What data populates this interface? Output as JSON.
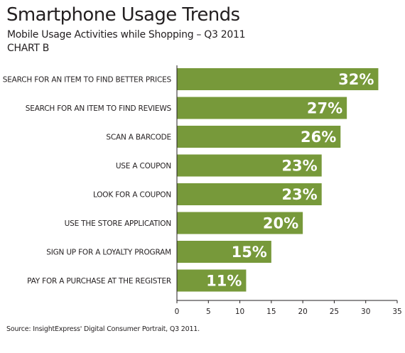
{
  "header": {
    "title": "Smartphone Usage Trends",
    "subtitle": "Mobile Usage Activities while Shopping – Q3 2011",
    "subtitle2": "CHART B"
  },
  "footer": {
    "source": "Source: InsightExpress' Digital Consumer Portrait, Q3 2011."
  },
  "colors": {
    "bar": "#77993a",
    "axis": "#231f20"
  },
  "chart_data": {
    "type": "bar",
    "orientation": "horizontal",
    "title": "Smartphone Usage Trends",
    "subtitle": "Mobile Usage Activities while Shopping – Q3 2011",
    "categories": [
      "SEARCH FOR AN ITEM TO FIND BETTER PRICES",
      "SEARCH FOR AN ITEM TO FIND REVIEWS",
      "SCAN A BARCODE",
      "USE A COUPON",
      "LOOK FOR A COUPON",
      "USE THE STORE APPLICATION",
      "SIGN UP FOR A LOYALTY PROGRAM",
      "PAY FOR A PURCHASE AT THE REGISTER"
    ],
    "values": [
      32,
      27,
      26,
      23,
      23,
      20,
      15,
      11
    ],
    "value_labels": [
      "32%",
      "27%",
      "26%",
      "23%",
      "23%",
      "20%",
      "15%",
      "11%"
    ],
    "xlim": [
      0,
      35
    ],
    "x_ticks": [
      0,
      5,
      10,
      15,
      20,
      25,
      30,
      35
    ],
    "grid": false,
    "legend": "none"
  }
}
